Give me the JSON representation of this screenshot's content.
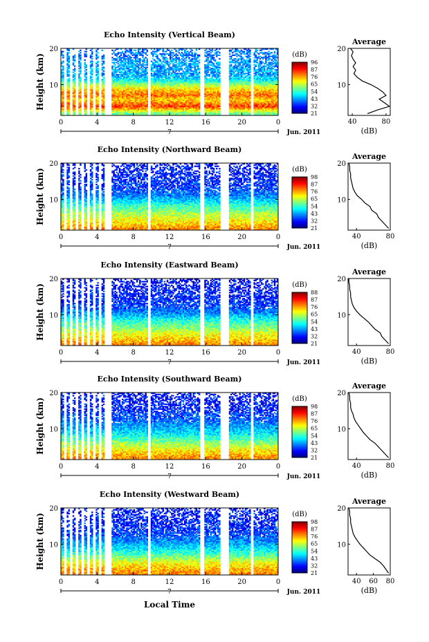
{
  "figure": {
    "xlabel": "Local Time",
    "date_label": "Jun. 2011",
    "day_label": "7"
  },
  "chart_data": [
    {
      "type": "heatmap",
      "title": "Echo Intensity (Vertical Beam)",
      "ylabel": "Height (km)",
      "xlim": [
        0,
        24
      ],
      "ylim": [
        1.5,
        20
      ],
      "x_ticks": [
        "0",
        "4",
        "8",
        "12",
        "16",
        "20",
        "0"
      ],
      "y_ticks": [
        "10",
        "20"
      ],
      "colorbar": {
        "unit": "(dB)",
        "ticks": [
          "96",
          "87",
          "76",
          "65",
          "54",
          "43",
          "32",
          "21"
        ]
      },
      "missing_time_ranges": [
        [
          4.8,
          5.6
        ],
        [
          9.6,
          9.9
        ],
        [
          15.4,
          15.8
        ],
        [
          17.6,
          18.5
        ],
        [
          21.0,
          21.3
        ]
      ],
      "average_profile": {
        "title": "Average",
        "xlabel": "(dB)",
        "x_ticks": [
          "40",
          "80"
        ],
        "xlim": [
          35,
          85
        ],
        "y_ticks": [
          "10",
          "20"
        ],
        "height_km": [
          2,
          3,
          4,
          5,
          6,
          7,
          8,
          9,
          10,
          11,
          12,
          13,
          14,
          15,
          16,
          17,
          18,
          19,
          20
        ],
        "db": [
          58,
          70,
          84,
          78,
          72,
          80,
          76,
          70,
          62,
          52,
          46,
          42,
          44,
          41,
          44,
          41,
          39,
          41,
          38
        ]
      }
    },
    {
      "type": "heatmap",
      "title": "Echo Intensity (Northward Beam)",
      "ylabel": "Height (km)",
      "xlim": [
        0,
        24
      ],
      "ylim": [
        1.5,
        20
      ],
      "x_ticks": [
        "0",
        "4",
        "8",
        "12",
        "16",
        "20",
        "0"
      ],
      "y_ticks": [
        "10",
        "20"
      ],
      "colorbar": {
        "unit": "(dB)",
        "ticks": [
          "98",
          "87",
          "76",
          "65",
          "54",
          "43",
          "32",
          "21"
        ]
      },
      "missing_time_ranges": [
        [
          4.8,
          5.6
        ],
        [
          9.6,
          9.9
        ],
        [
          15.4,
          15.8
        ],
        [
          17.6,
          18.5
        ],
        [
          21.0,
          21.3
        ]
      ],
      "average_profile": {
        "title": "Average",
        "xlabel": "(dB)",
        "x_ticks": [
          "40",
          "80"
        ],
        "xlim": [
          30,
          80
        ],
        "y_ticks": [
          "10",
          "20"
        ],
        "height_km": [
          2,
          3,
          4,
          5,
          6,
          7,
          8,
          9,
          10,
          11,
          12,
          13,
          14,
          15,
          16,
          17,
          18,
          19,
          20
        ],
        "db": [
          78,
          74,
          70,
          66,
          64,
          58,
          56,
          50,
          46,
          41,
          38,
          36,
          35,
          34,
          33,
          33,
          32,
          32,
          31
        ]
      }
    },
    {
      "type": "heatmap",
      "title": "Echo Intensity (Eastward Beam)",
      "ylabel": "Height (km)",
      "xlim": [
        0,
        24
      ],
      "ylim": [
        1.5,
        20
      ],
      "x_ticks": [
        "0",
        "4",
        "8",
        "12",
        "16",
        "20",
        "0"
      ],
      "y_ticks": [
        "10",
        "20"
      ],
      "colorbar": {
        "unit": "(dB)",
        "ticks": [
          "88",
          "87",
          "76",
          "65",
          "54",
          "43",
          "32",
          "21"
        ]
      },
      "missing_time_ranges": [
        [
          4.8,
          5.6
        ],
        [
          9.6,
          9.9
        ],
        [
          15.4,
          15.8
        ],
        [
          17.6,
          18.5
        ],
        [
          21.0,
          21.3
        ]
      ],
      "average_profile": {
        "title": "Average",
        "xlabel": "(dB)",
        "x_ticks": [
          "40",
          "80"
        ],
        "xlim": [
          30,
          80
        ],
        "y_ticks": [
          "10",
          "20"
        ],
        "height_km": [
          2,
          3,
          4,
          5,
          6,
          7,
          8,
          9,
          10,
          11,
          12,
          13,
          14,
          15,
          16,
          17,
          18,
          19,
          20
        ],
        "db": [
          78,
          74,
          70,
          68,
          62,
          58,
          54,
          49,
          44,
          40,
          37,
          35,
          34,
          33,
          33,
          32,
          32,
          31,
          31
        ]
      }
    },
    {
      "type": "heatmap",
      "title": "Echo Intensity (Southward Beam)",
      "ylabel": "Height (km)",
      "xlim": [
        0,
        24
      ],
      "ylim": [
        1.5,
        20
      ],
      "x_ticks": [
        "0",
        "4",
        "8",
        "12",
        "16",
        "20",
        "0"
      ],
      "y_ticks": [
        "10",
        "20"
      ],
      "colorbar": {
        "unit": "(dB)",
        "ticks": [
          "98",
          "87",
          "76",
          "65",
          "54",
          "43",
          "32",
          "21"
        ]
      },
      "missing_time_ranges": [
        [
          4.8,
          5.6
        ],
        [
          9.6,
          9.9
        ],
        [
          15.4,
          15.8
        ],
        [
          17.6,
          18.5
        ],
        [
          21.0,
          21.3
        ]
      ],
      "average_profile": {
        "title": "Average",
        "xlabel": "(dB)",
        "x_ticks": [
          "40",
          "80"
        ],
        "xlim": [
          30,
          80
        ],
        "y_ticks": [
          "10",
          "20"
        ],
        "height_km": [
          2,
          3,
          4,
          5,
          6,
          7,
          8,
          9,
          10,
          11,
          12,
          13,
          14,
          15,
          16,
          17,
          18,
          19,
          20
        ],
        "db": [
          78,
          74,
          70,
          66,
          62,
          56,
          52,
          48,
          45,
          42,
          39,
          37,
          36,
          34,
          33,
          33,
          32,
          32,
          31
        ]
      }
    },
    {
      "type": "heatmap",
      "title": "Echo Intensity (Westward Beam)",
      "ylabel": "Height (km)",
      "xlim": [
        0,
        24
      ],
      "ylim": [
        1.5,
        20
      ],
      "x_ticks": [
        "0",
        "4",
        "8",
        "12",
        "16",
        "20",
        "0"
      ],
      "y_ticks": [
        "10",
        "20"
      ],
      "colorbar": {
        "unit": "(dB)",
        "ticks": [
          "98",
          "87",
          "76",
          "65",
          "54",
          "43",
          "32",
          "21"
        ]
      },
      "missing_time_ranges": [
        [
          4.8,
          5.6
        ],
        [
          9.6,
          9.9
        ],
        [
          15.4,
          15.8
        ],
        [
          17.6,
          18.5
        ],
        [
          21.0,
          21.3
        ]
      ],
      "average_profile": {
        "title": "Average",
        "xlabel": "(dB)",
        "x_ticks": [
          "40",
          "60",
          "80"
        ],
        "xlim": [
          30,
          80
        ],
        "y_ticks": [
          "10",
          "20"
        ],
        "height_km": [
          2,
          3,
          4,
          5,
          6,
          7,
          8,
          9,
          10,
          11,
          12,
          13,
          14,
          15,
          16,
          17,
          18,
          19,
          20
        ],
        "db": [
          78,
          75,
          72,
          68,
          62,
          56,
          52,
          48,
          44,
          41,
          38,
          36,
          35,
          34,
          33,
          33,
          32,
          32,
          31
        ]
      }
    }
  ]
}
